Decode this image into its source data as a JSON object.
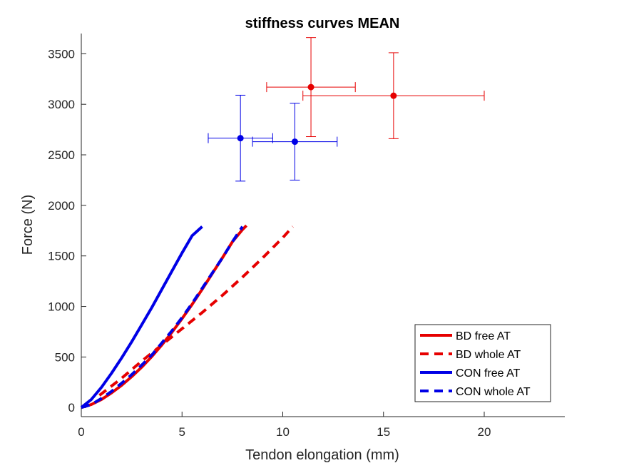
{
  "colors": {
    "red": "#e60000",
    "blue": "#0000e6",
    "axis": "#262626",
    "red_marker": "#e31a1a",
    "blue_marker": "#1f1fd6"
  },
  "chart_data": {
    "type": "line",
    "title": "stiffness curves MEAN",
    "xlabel": "Tendon elongation (mm)",
    "ylabel": "Force (N)",
    "xlim": [
      0,
      24
    ],
    "ylim": [
      -90,
      3700
    ],
    "xticks": [
      0,
      5,
      10,
      15,
      20
    ],
    "yticks": [
      0,
      500,
      1000,
      1500,
      2000,
      2500,
      3000,
      3500
    ],
    "grid": false,
    "legend_position": "bottom-right",
    "series": [
      {
        "name": "BD free AT",
        "color": "#e60000",
        "dash": "solid",
        "x": [
          0.0,
          0.5,
          1.0,
          1.5,
          2.0,
          2.5,
          3.0,
          3.5,
          4.0,
          4.5,
          5.0,
          5.5,
          6.0,
          6.5,
          7.0,
          7.5,
          8.0,
          8.2
        ],
        "y": [
          0,
          30,
          80,
          145,
          220,
          305,
          400,
          505,
          620,
          745,
          880,
          1020,
          1170,
          1325,
          1480,
          1640,
          1760,
          1800
        ]
      },
      {
        "name": "BD whole AT",
        "color": "#e60000",
        "dash": "dashed",
        "x": [
          0.9,
          2.0,
          3.0,
          4.0,
          5.0,
          6.0,
          7.0,
          8.0,
          9.0,
          10.0,
          10.5
        ],
        "y": [
          120,
          290,
          460,
          620,
          780,
          940,
          1110,
          1290,
          1480,
          1680,
          1790
        ]
      },
      {
        "name": "CON free AT",
        "color": "#0000e6",
        "dash": "solid",
        "x": [
          0.0,
          0.5,
          1.0,
          1.5,
          2.0,
          2.5,
          3.0,
          3.5,
          4.0,
          4.5,
          5.0,
          5.5,
          6.0
        ],
        "y": [
          0,
          80,
          200,
          340,
          490,
          650,
          820,
          990,
          1170,
          1350,
          1530,
          1700,
          1790
        ]
      },
      {
        "name": "CON whole AT",
        "color": "#0000e6",
        "dash": "dashed",
        "x": [
          0.0,
          0.5,
          1.0,
          1.5,
          2.0,
          2.5,
          3.0,
          3.5,
          4.0,
          4.5,
          5.0,
          5.5,
          6.0,
          6.5,
          7.0,
          7.5,
          8.0
        ],
        "y": [
          0,
          30,
          90,
          160,
          240,
          325,
          420,
          520,
          640,
          760,
          890,
          1030,
          1180,
          1330,
          1480,
          1640,
          1790
        ]
      }
    ],
    "points": [
      {
        "group": "BD",
        "color": "#e60000",
        "x": 11.4,
        "y": 3170,
        "x_err": 2.2,
        "y_err": 490
      },
      {
        "group": "BD",
        "color": "#e60000",
        "x": 15.5,
        "y": 3085,
        "x_err": 4.5,
        "y_err": 425
      },
      {
        "group": "CON",
        "color": "#0000e6",
        "x": 7.9,
        "y": 2665,
        "x_err": 1.6,
        "y_err": 425
      },
      {
        "group": "CON",
        "color": "#0000e6",
        "x": 10.6,
        "y": 2630,
        "x_err": 2.1,
        "y_err": 380
      }
    ]
  }
}
